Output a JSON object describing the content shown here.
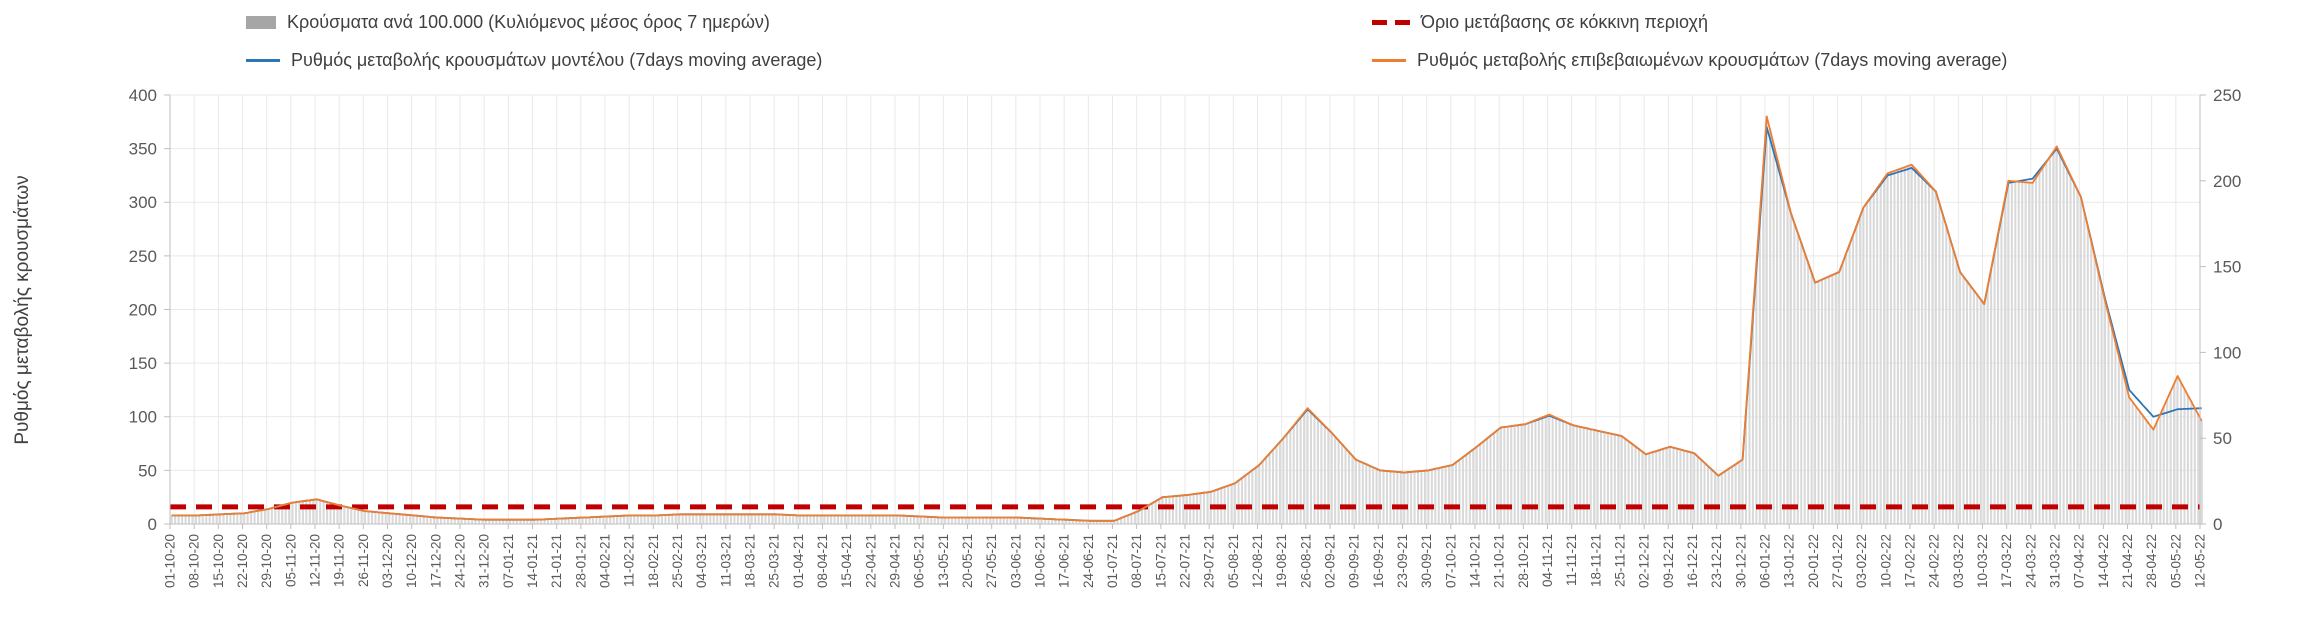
{
  "page": {
    "background": "#ffffff"
  },
  "chart_data": {
    "type": "bar+line",
    "title": "",
    "ylabel_left": "Ρυθμός μεταβολής κρουσμάτων",
    "xlabel": "",
    "grid": true,
    "legend_position": "top",
    "colors": {
      "bars": "#d9d9d9",
      "threshold": "#c00000",
      "model_line": "#2e75b6",
      "confirmed_line": "#ed7d31",
      "grid": "#e9e9e9",
      "axis": "#bfbfbf",
      "tick_text": "#595959",
      "legend_text": "#404040"
    },
    "legend": [
      {
        "label": "Κρούσματα ανά 100.000 (Κυλιόμενος μέσος όρος 7 ημερών)",
        "marker": "bar",
        "color": "#a6a6a6"
      },
      {
        "label": "Όριο μετάβασης σε κόκκινη περιοχή",
        "marker": "dashed-line",
        "color": "#c00000"
      },
      {
        "label": "Ρυθμός μεταβολής κρουσμάτων μοντέλου (7days moving average)",
        "marker": "line",
        "color": "#2e75b6"
      },
      {
        "label": "Ρυθμός μεταβολής επιβεβαιωμένων κρουσμάτων (7days moving average)",
        "marker": "line",
        "color": "#ed7d31"
      }
    ],
    "left_axis": {
      "min": 0,
      "max": 400,
      "ticks": [
        0,
        50,
        100,
        150,
        200,
        250,
        300,
        350,
        400
      ]
    },
    "right_axis": {
      "min": 0,
      "max": 250,
      "ticks": [
        0,
        50,
        100,
        150,
        200,
        250
      ]
    },
    "threshold": {
      "label": "Όριο μετάβασης σε κόκκινη περιοχή",
      "value": 10,
      "axis": "right"
    },
    "categories": [
      "01-10-20",
      "08-10-20",
      "15-10-20",
      "22-10-20",
      "29-10-20",
      "05-11-20",
      "12-11-20",
      "19-11-20",
      "26-11-20",
      "03-12-20",
      "10-12-20",
      "17-12-20",
      "24-12-20",
      "31-12-20",
      "07-01-21",
      "14-01-21",
      "21-01-21",
      "28-01-21",
      "04-02-21",
      "11-02-21",
      "18-02-21",
      "25-02-21",
      "04-03-21",
      "11-03-21",
      "18-03-21",
      "25-03-21",
      "01-04-21",
      "08-04-21",
      "15-04-21",
      "22-04-21",
      "29-04-21",
      "06-05-21",
      "13-05-21",
      "20-05-21",
      "27-05-21",
      "03-06-21",
      "10-06-21",
      "17-06-21",
      "24-06-21",
      "01-07-21",
      "08-07-21",
      "15-07-21",
      "22-07-21",
      "29-07-21",
      "05-08-21",
      "12-08-21",
      "19-08-21",
      "26-08-21",
      "02-09-21",
      "09-09-21",
      "16-09-21",
      "23-09-21",
      "30-09-21",
      "07-10-21",
      "14-10-21",
      "21-10-21",
      "28-10-21",
      "04-11-21",
      "11-11-21",
      "18-11-21",
      "25-11-21",
      "02-12-21",
      "09-12-21",
      "16-12-21",
      "23-12-21",
      "30-12-21",
      "06-01-22",
      "13-01-22",
      "20-01-22",
      "27-01-22",
      "03-02-22",
      "10-02-22",
      "17-02-22",
      "24-02-22",
      "03-03-22",
      "10-03-22",
      "17-03-22",
      "24-03-22",
      "31-03-22",
      "07-04-22",
      "14-04-22",
      "21-04-22",
      "28-04-22",
      "05-05-22",
      "12-05-22"
    ],
    "series": [
      {
        "name": "Ρυθμός μεταβολής κρουσμάτων μοντέλου (7days moving average)",
        "type": "line",
        "axis": "left",
        "color": "#2e75b6",
        "values": [
          8,
          8,
          9,
          10,
          14,
          20,
          23,
          17,
          12,
          10,
          8,
          6,
          5,
          4,
          4,
          4,
          5,
          6,
          7,
          8,
          8,
          9,
          9,
          9,
          9,
          9,
          8,
          8,
          8,
          8,
          8,
          7,
          6,
          6,
          6,
          6,
          5,
          4,
          3,
          3,
          12,
          25,
          27,
          30,
          38,
          55,
          80,
          107,
          85,
          60,
          50,
          48,
          50,
          55,
          72,
          90,
          93,
          101,
          92,
          87,
          82,
          65,
          72,
          66,
          45,
          60,
          370,
          290,
          225,
          235,
          295,
          325,
          332,
          310,
          235,
          205,
          318,
          322,
          350,
          305,
          210,
          125,
          100,
          107,
          108
        ]
      },
      {
        "name": "Ρυθμός μεταβολής επιβεβαιωμένων κρουσμάτων (7days moving average)",
        "type": "line",
        "axis": "left",
        "color": "#ed7d31",
        "values": [
          8,
          8,
          9,
          10,
          14,
          20,
          23,
          17,
          12,
          10,
          8,
          6,
          5,
          4,
          4,
          4,
          5,
          6,
          7,
          8,
          8,
          9,
          9,
          9,
          9,
          9,
          8,
          8,
          8,
          8,
          8,
          7,
          6,
          6,
          6,
          6,
          5,
          4,
          3,
          3,
          12,
          25,
          27,
          30,
          38,
          55,
          80,
          108,
          85,
          60,
          50,
          48,
          50,
          55,
          72,
          90,
          93,
          102,
          92,
          87,
          82,
          65,
          72,
          66,
          45,
          60,
          380,
          290,
          225,
          235,
          295,
          327,
          335,
          310,
          235,
          205,
          320,
          318,
          352,
          305,
          208,
          118,
          88,
          138,
          96
        ]
      },
      {
        "name": "Κρούσματα ανά 100.000 (Κυλιόμενος μέσος όρος 7 ημερών)",
        "type": "bar",
        "axis": "right",
        "color": "#d9d9d9",
        "values": [
          5,
          5,
          6,
          6,
          9,
          13,
          14,
          11,
          8,
          6,
          5,
          4,
          3,
          3,
          3,
          3,
          3,
          4,
          4,
          5,
          5,
          6,
          6,
          6,
          6,
          6,
          5,
          5,
          5,
          5,
          5,
          4,
          4,
          4,
          4,
          4,
          3,
          3,
          2,
          2,
          8,
          16,
          17,
          19,
          24,
          34,
          50,
          68,
          53,
          38,
          31,
          30,
          31,
          34,
          45,
          56,
          58,
          64,
          58,
          54,
          51,
          41,
          45,
          41,
          28,
          38,
          238,
          181,
          141,
          147,
          184,
          204,
          209,
          194,
          147,
          128,
          200,
          199,
          220,
          191,
          130,
          74,
          55,
          86,
          60
        ]
      }
    ]
  }
}
